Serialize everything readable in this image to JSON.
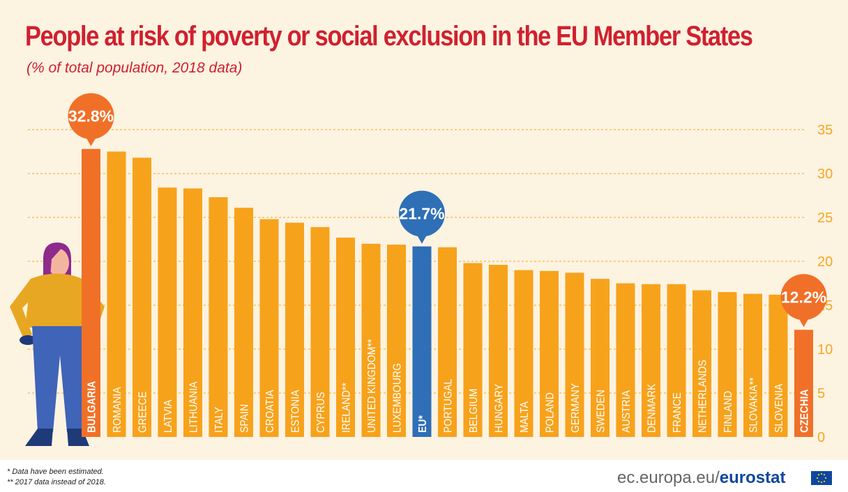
{
  "title": "People at risk of poverty or social exclusion in the EU Member States",
  "subtitle": "(% of total population, 2018 data)",
  "footnotes": [
    "* Data have been estimated.",
    "** 2017 data instead of 2018."
  ],
  "source": {
    "domain": "ec.europa.eu/",
    "brand": "eurostat"
  },
  "colors": {
    "bar": "#f7a21b",
    "highlight": "#f07028",
    "eu": "#2e6fb7",
    "gridline": "#f5b544",
    "tick": "#f5a623",
    "background": "#fdf3e1",
    "title": "#d0202f"
  },
  "chart_data": {
    "type": "bar",
    "title": "People at risk of poverty or social exclusion in the EU Member States",
    "subtitle": "(% of total population, 2018 data)",
    "ylim": [
      0,
      35
    ],
    "yticks": [
      0,
      5,
      10,
      15,
      20,
      25,
      30,
      35
    ],
    "grid": true,
    "categories": [
      "BULGARIA",
      "ROMANIA",
      "GREECE",
      "LATVIA",
      "LITHUANIA",
      "ITALY",
      "SPAIN",
      "CROATIA",
      "ESTONIA",
      "CYPRUS",
      "IRELAND**",
      "UNITED KINGDOM**",
      "LUXEMBOURG",
      "EU*",
      "PORTUGAL",
      "BELGIUM",
      "HUNGARY",
      "MALTA",
      "POLAND",
      "GERMANY",
      "SWEDEN",
      "AUSTRIA",
      "DENMARK",
      "FRANCE",
      "NETHERLANDS",
      "FINLAND",
      "SLOVAKIA**",
      "SLOVENIA",
      "CZECHIA"
    ],
    "values": [
      32.8,
      32.5,
      31.8,
      28.4,
      28.3,
      27.3,
      26.1,
      24.8,
      24.4,
      23.9,
      22.7,
      22.0,
      21.9,
      21.7,
      21.6,
      19.8,
      19.6,
      19.0,
      18.9,
      18.7,
      18.0,
      17.5,
      17.4,
      17.4,
      16.7,
      16.5,
      16.3,
      16.2,
      12.2
    ],
    "highlights": [
      {
        "category": "BULGARIA",
        "label": "32.8%",
        "style": "highlight"
      },
      {
        "category": "EU*",
        "label": "21.7%",
        "style": "eu"
      },
      {
        "category": "CZECHIA",
        "label": "12.2%",
        "style": "highlight"
      }
    ]
  }
}
